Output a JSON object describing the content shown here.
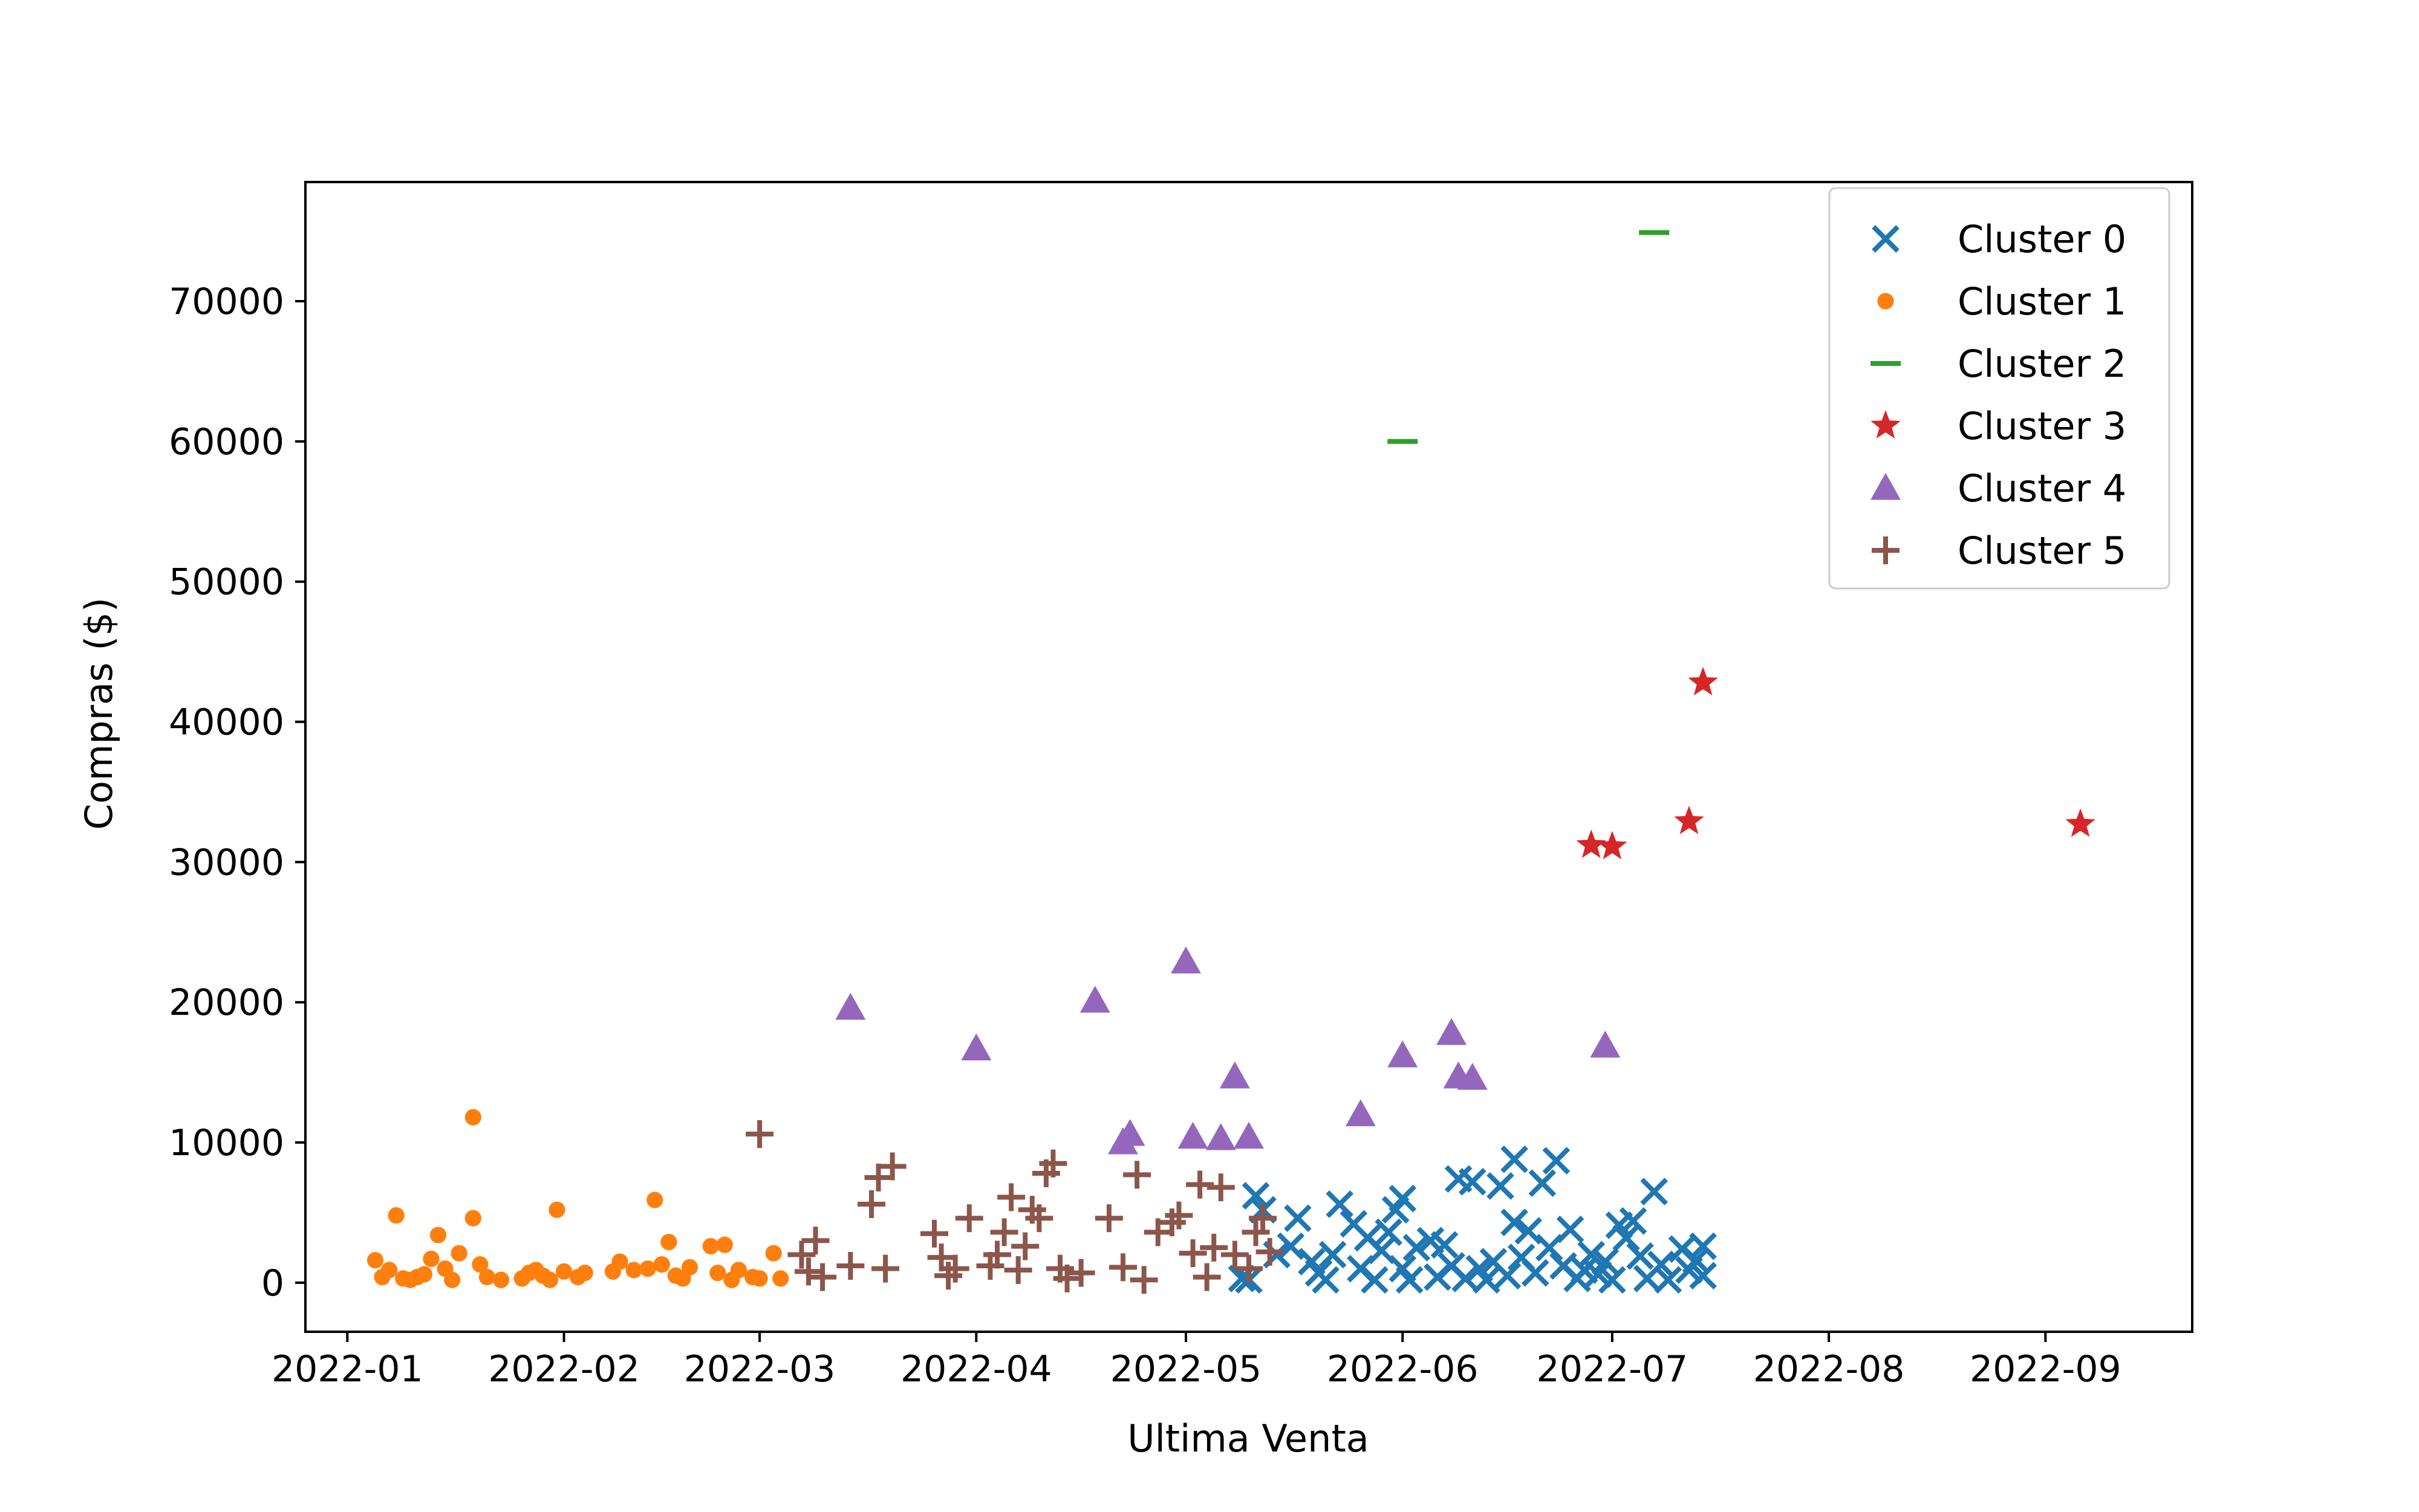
{
  "chart_data": {
    "type": "scatter",
    "title": "",
    "xlabel": "Ultima Venta",
    "ylabel": "Compras ($)",
    "x_is_date": true,
    "xlim": [
      "2021-12-26",
      "2022-09-22"
    ],
    "ylim": [
      -3500,
      78500
    ],
    "x_ticks": [
      "2022-01-01",
      "2022-02-01",
      "2022-03-01",
      "2022-04-01",
      "2022-05-01",
      "2022-06-01",
      "2022-07-01",
      "2022-08-01",
      "2022-09-01"
    ],
    "x_tick_labels": [
      "2022-01",
      "2022-02",
      "2022-03",
      "2022-04",
      "2022-05",
      "2022-06",
      "2022-07",
      "2022-08",
      "2022-09"
    ],
    "y_ticks": [
      0,
      10000,
      20000,
      30000,
      40000,
      50000,
      60000,
      70000
    ],
    "y_tick_labels": [
      "0",
      "10000",
      "20000",
      "30000",
      "40000",
      "50000",
      "60000",
      "70000"
    ],
    "grid": false,
    "legend_position": "top-right",
    "series": [
      {
        "name": "Cluster 0",
        "marker": "x",
        "color": "#1f77b4",
        "points": [
          {
            "x": "2022-05-09",
            "y": 300
          },
          {
            "x": "2022-05-10",
            "y": 200
          },
          {
            "x": "2022-05-11",
            "y": 6200
          },
          {
            "x": "2022-05-12",
            "y": 5200
          },
          {
            "x": "2022-05-14",
            "y": 2000
          },
          {
            "x": "2022-05-16",
            "y": 2600
          },
          {
            "x": "2022-05-17",
            "y": 4600
          },
          {
            "x": "2022-05-19",
            "y": 1500
          },
          {
            "x": "2022-05-20",
            "y": 700
          },
          {
            "x": "2022-05-21",
            "y": 200
          },
          {
            "x": "2022-05-22",
            "y": 2000
          },
          {
            "x": "2022-05-23",
            "y": 5600
          },
          {
            "x": "2022-05-25",
            "y": 4200
          },
          {
            "x": "2022-05-26",
            "y": 1000
          },
          {
            "x": "2022-05-27",
            "y": 3200
          },
          {
            "x": "2022-05-28",
            "y": 200
          },
          {
            "x": "2022-05-29",
            "y": 2300
          },
          {
            "x": "2022-05-30",
            "y": 3600
          },
          {
            "x": "2022-05-31",
            "y": 5200
          },
          {
            "x": "2022-06-01",
            "y": 6000
          },
          {
            "x": "2022-06-01",
            "y": 1000
          },
          {
            "x": "2022-06-02",
            "y": 200
          },
          {
            "x": "2022-06-03",
            "y": 2500
          },
          {
            "x": "2022-06-05",
            "y": 3000
          },
          {
            "x": "2022-06-06",
            "y": 400
          },
          {
            "x": "2022-06-07",
            "y": 2700
          },
          {
            "x": "2022-06-08",
            "y": 1200
          },
          {
            "x": "2022-06-09",
            "y": 7400
          },
          {
            "x": "2022-06-10",
            "y": 300
          },
          {
            "x": "2022-06-11",
            "y": 7200
          },
          {
            "x": "2022-06-12",
            "y": 1000
          },
          {
            "x": "2022-06-13",
            "y": 200
          },
          {
            "x": "2022-06-14",
            "y": 1500
          },
          {
            "x": "2022-06-15",
            "y": 6900
          },
          {
            "x": "2022-06-16",
            "y": 500
          },
          {
            "x": "2022-06-17",
            "y": 4300
          },
          {
            "x": "2022-06-17",
            "y": 8800
          },
          {
            "x": "2022-06-18",
            "y": 1800
          },
          {
            "x": "2022-06-19",
            "y": 3700
          },
          {
            "x": "2022-06-20",
            "y": 700
          },
          {
            "x": "2022-06-21",
            "y": 7100
          },
          {
            "x": "2022-06-22",
            "y": 2500
          },
          {
            "x": "2022-06-23",
            "y": 8700
          },
          {
            "x": "2022-06-24",
            "y": 1200
          },
          {
            "x": "2022-06-25",
            "y": 3800
          },
          {
            "x": "2022-06-26",
            "y": 300
          },
          {
            "x": "2022-06-27",
            "y": 900
          },
          {
            "x": "2022-06-28",
            "y": 2000
          },
          {
            "x": "2022-06-29",
            "y": 600
          },
          {
            "x": "2022-06-30",
            "y": 1500
          },
          {
            "x": "2022-07-01",
            "y": 200
          },
          {
            "x": "2022-07-02",
            "y": 4100
          },
          {
            "x": "2022-07-03",
            "y": 3200
          },
          {
            "x": "2022-07-04",
            "y": 4400
          },
          {
            "x": "2022-07-05",
            "y": 1900
          },
          {
            "x": "2022-07-06",
            "y": 300
          },
          {
            "x": "2022-07-07",
            "y": 6500
          },
          {
            "x": "2022-07-08",
            "y": 1300
          },
          {
            "x": "2022-07-09",
            "y": 200
          },
          {
            "x": "2022-07-11",
            "y": 2400
          },
          {
            "x": "2022-07-12",
            "y": 900
          },
          {
            "x": "2022-07-13",
            "y": 1600
          },
          {
            "x": "2022-07-14",
            "y": 500
          },
          {
            "x": "2022-07-14",
            "y": 2600
          }
        ]
      },
      {
        "name": "Cluster 1",
        "marker": "o",
        "color": "#ff7f0e",
        "points": [
          {
            "x": "2022-01-05",
            "y": 1600
          },
          {
            "x": "2022-01-06",
            "y": 400
          },
          {
            "x": "2022-01-07",
            "y": 900
          },
          {
            "x": "2022-01-08",
            "y": 4800
          },
          {
            "x": "2022-01-09",
            "y": 300
          },
          {
            "x": "2022-01-10",
            "y": 200
          },
          {
            "x": "2022-01-11",
            "y": 400
          },
          {
            "x": "2022-01-12",
            "y": 600
          },
          {
            "x": "2022-01-13",
            "y": 1700
          },
          {
            "x": "2022-01-14",
            "y": 3400
          },
          {
            "x": "2022-01-15",
            "y": 1000
          },
          {
            "x": "2022-01-16",
            "y": 200
          },
          {
            "x": "2022-01-17",
            "y": 2100
          },
          {
            "x": "2022-01-19",
            "y": 4600
          },
          {
            "x": "2022-01-19",
            "y": 11800
          },
          {
            "x": "2022-01-20",
            "y": 1300
          },
          {
            "x": "2022-01-21",
            "y": 400
          },
          {
            "x": "2022-01-23",
            "y": 200
          },
          {
            "x": "2022-01-26",
            "y": 300
          },
          {
            "x": "2022-01-27",
            "y": 700
          },
          {
            "x": "2022-01-28",
            "y": 900
          },
          {
            "x": "2022-01-29",
            "y": 500
          },
          {
            "x": "2022-01-30",
            "y": 200
          },
          {
            "x": "2022-01-31",
            "y": 5200
          },
          {
            "x": "2022-02-01",
            "y": 800
          },
          {
            "x": "2022-02-03",
            "y": 400
          },
          {
            "x": "2022-02-04",
            "y": 700
          },
          {
            "x": "2022-02-08",
            "y": 800
          },
          {
            "x": "2022-02-09",
            "y": 1500
          },
          {
            "x": "2022-02-11",
            "y": 900
          },
          {
            "x": "2022-02-13",
            "y": 1000
          },
          {
            "x": "2022-02-14",
            "y": 5900
          },
          {
            "x": "2022-02-15",
            "y": 1300
          },
          {
            "x": "2022-02-16",
            "y": 2900
          },
          {
            "x": "2022-02-17",
            "y": 500
          },
          {
            "x": "2022-02-18",
            "y": 300
          },
          {
            "x": "2022-02-19",
            "y": 1100
          },
          {
            "x": "2022-02-22",
            "y": 2600
          },
          {
            "x": "2022-02-23",
            "y": 700
          },
          {
            "x": "2022-02-24",
            "y": 2700
          },
          {
            "x": "2022-02-25",
            "y": 200
          },
          {
            "x": "2022-02-26",
            "y": 900
          },
          {
            "x": "2022-02-28",
            "y": 400
          },
          {
            "x": "2022-03-01",
            "y": 300
          },
          {
            "x": "2022-03-03",
            "y": 2100
          },
          {
            "x": "2022-03-04",
            "y": 300
          }
        ]
      },
      {
        "name": "Cluster 2",
        "marker": "_",
        "color": "#2ca02c",
        "points": [
          {
            "x": "2022-06-01",
            "y": 60000
          },
          {
            "x": "2022-07-07",
            "y": 74900
          }
        ]
      },
      {
        "name": "Cluster 3",
        "marker": "*",
        "color": "#d62728",
        "points": [
          {
            "x": "2022-06-28",
            "y": 31200
          },
          {
            "x": "2022-07-01",
            "y": 31100
          },
          {
            "x": "2022-07-12",
            "y": 32900
          },
          {
            "x": "2022-07-14",
            "y": 42800
          },
          {
            "x": "2022-09-06",
            "y": 32700
          }
        ]
      },
      {
        "name": "Cluster 4",
        "marker": "^",
        "color": "#9467bd",
        "points": [
          {
            "x": "2022-03-14",
            "y": 19600
          },
          {
            "x": "2022-04-01",
            "y": 16700
          },
          {
            "x": "2022-04-18",
            "y": 20100
          },
          {
            "x": "2022-04-22",
            "y": 10000
          },
          {
            "x": "2022-04-23",
            "y": 10600
          },
          {
            "x": "2022-05-01",
            "y": 22900
          },
          {
            "x": "2022-05-02",
            "y": 10400
          },
          {
            "x": "2022-05-06",
            "y": 10300
          },
          {
            "x": "2022-05-08",
            "y": 14700
          },
          {
            "x": "2022-05-10",
            "y": 10400
          },
          {
            "x": "2022-05-26",
            "y": 12000
          },
          {
            "x": "2022-06-01",
            "y": 16200
          },
          {
            "x": "2022-06-08",
            "y": 17800
          },
          {
            "x": "2022-06-09",
            "y": 14700
          },
          {
            "x": "2022-06-11",
            "y": 14600
          },
          {
            "x": "2022-06-30",
            "y": 16900
          }
        ]
      },
      {
        "name": "Cluster 5",
        "marker": "+",
        "color": "#8c564b",
        "points": [
          {
            "x": "2022-03-01",
            "y": 10600
          },
          {
            "x": "2022-03-07",
            "y": 2000
          },
          {
            "x": "2022-03-08",
            "y": 800
          },
          {
            "x": "2022-03-09",
            "y": 3000
          },
          {
            "x": "2022-03-10",
            "y": 400
          },
          {
            "x": "2022-03-14",
            "y": 1200
          },
          {
            "x": "2022-03-17",
            "y": 5600
          },
          {
            "x": "2022-03-18",
            "y": 7500
          },
          {
            "x": "2022-03-19",
            "y": 1000
          },
          {
            "x": "2022-03-20",
            "y": 8300
          },
          {
            "x": "2022-03-26",
            "y": 3500
          },
          {
            "x": "2022-03-27",
            "y": 1800
          },
          {
            "x": "2022-03-28",
            "y": 500
          },
          {
            "x": "2022-03-29",
            "y": 1000
          },
          {
            "x": "2022-03-31",
            "y": 4600
          },
          {
            "x": "2022-04-03",
            "y": 1200
          },
          {
            "x": "2022-04-04",
            "y": 2000
          },
          {
            "x": "2022-04-05",
            "y": 3600
          },
          {
            "x": "2022-04-06",
            "y": 6100
          },
          {
            "x": "2022-04-07",
            "y": 900
          },
          {
            "x": "2022-04-08",
            "y": 2600
          },
          {
            "x": "2022-04-09",
            "y": 5200
          },
          {
            "x": "2022-04-10",
            "y": 4600
          },
          {
            "x": "2022-04-11",
            "y": 7800
          },
          {
            "x": "2022-04-12",
            "y": 8500
          },
          {
            "x": "2022-04-13",
            "y": 1000
          },
          {
            "x": "2022-04-14",
            "y": 300
          },
          {
            "x": "2022-04-16",
            "y": 700
          },
          {
            "x": "2022-04-20",
            "y": 4600
          },
          {
            "x": "2022-04-22",
            "y": 1100
          },
          {
            "x": "2022-04-24",
            "y": 7700
          },
          {
            "x": "2022-04-25",
            "y": 200
          },
          {
            "x": "2022-04-27",
            "y": 3600
          },
          {
            "x": "2022-04-29",
            "y": 4300
          },
          {
            "x": "2022-04-30",
            "y": 4800
          },
          {
            "x": "2022-05-02",
            "y": 2100
          },
          {
            "x": "2022-05-03",
            "y": 7000
          },
          {
            "x": "2022-05-04",
            "y": 400
          },
          {
            "x": "2022-05-05",
            "y": 2500
          },
          {
            "x": "2022-05-06",
            "y": 6800
          },
          {
            "x": "2022-05-08",
            "y": 2000
          },
          {
            "x": "2022-05-10",
            "y": 1000
          },
          {
            "x": "2022-05-11",
            "y": 3600
          },
          {
            "x": "2022-05-12",
            "y": 4600
          },
          {
            "x": "2022-05-13",
            "y": 2200
          }
        ]
      }
    ]
  }
}
